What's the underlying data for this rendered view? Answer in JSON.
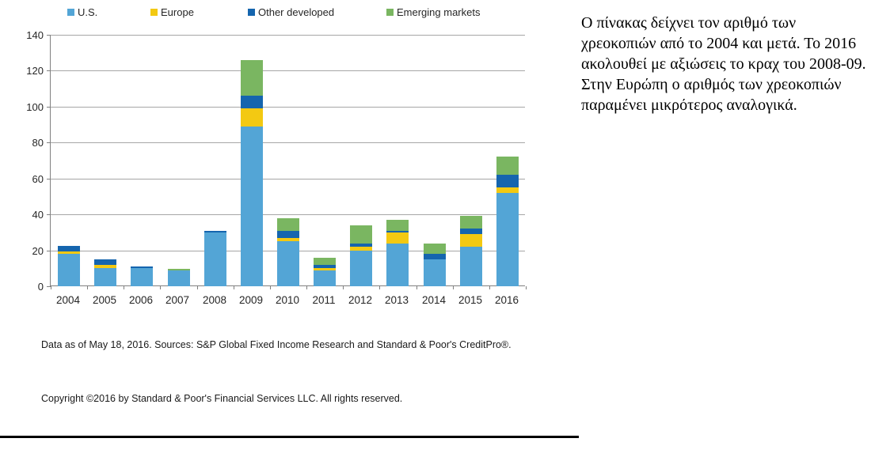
{
  "chart_data": {
    "type": "bar",
    "stacked": true,
    "categories": [
      "2004",
      "2005",
      "2006",
      "2007",
      "2008",
      "2009",
      "2010",
      "2011",
      "2012",
      "2013",
      "2014",
      "2015",
      "2016"
    ],
    "series": [
      {
        "name": "U.S.",
        "color": "#53a5d6",
        "values": [
          18,
          10,
          10,
          9,
          30,
          89,
          25,
          9,
          20,
          24,
          15,
          22,
          52
        ]
      },
      {
        "name": "Europe",
        "color": "#f3c912",
        "values": [
          1.5,
          2,
          0,
          0,
          0,
          10,
          2,
          1,
          2,
          6,
          0,
          7,
          3
        ]
      },
      {
        "name": "Other developed",
        "color": "#1565ae",
        "values": [
          3,
          3,
          1,
          0,
          1,
          7,
          4,
          2,
          2,
          1,
          3,
          3,
          7
        ]
      },
      {
        "name": "Emerging markets",
        "color": "#7ab661",
        "values": [
          0,
          0,
          0,
          0.5,
          0,
          20,
          7,
          4,
          10,
          6,
          6,
          7,
          10
        ]
      }
    ],
    "title": "",
    "xlabel": "",
    "ylabel": "",
    "ylim": [
      0,
      140
    ],
    "yticks": [
      0,
      20,
      40,
      60,
      80,
      100,
      120,
      140
    ],
    "grid": true,
    "legend_position": "top"
  },
  "footnotes": {
    "source": "Data as of May 18, 2016. Sources: S&P Global Fixed Income Research and Standard  & Poor's CreditPro®.",
    "copyright": "Copyright ©2016 by Standard & Poor's Financial Services LLC. All rights reserved."
  },
  "commentary": {
    "paragraph1": "Ο πίνακας δείχνει τον αριθμό των χρεοκοπιών από το 2004 και μετά. Το 2016 ακολουθεί με αξιώσεις το κραχ του 2008-09.",
    "paragraph2": "Στην Ευρώπη ο αριθμός των χρεοκοπιών παραμένει μικρότερος αναλογικά."
  },
  "style": {
    "gridline_color": "#a6a6a6",
    "axis_color": "#808080",
    "text_color": "#262626",
    "rule_color": "#000000"
  }
}
